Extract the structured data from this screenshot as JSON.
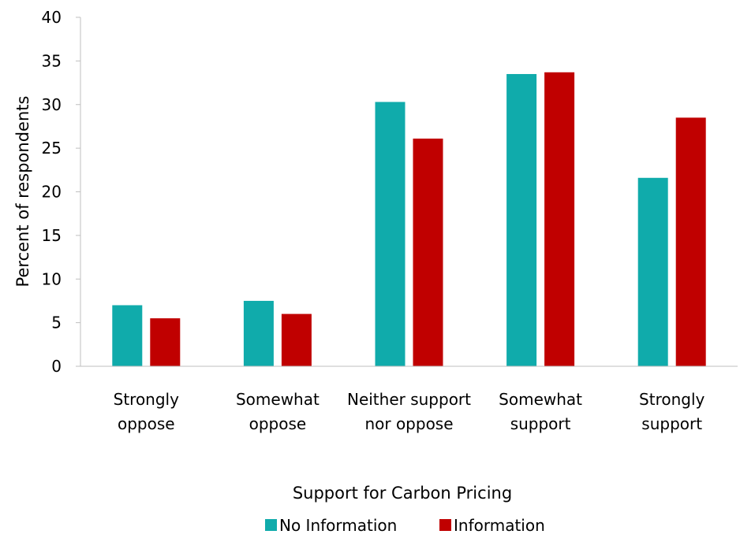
{
  "chart_data": {
    "type": "bar",
    "title": "",
    "xlabel": "Support for Carbon Pricing",
    "ylabel": "Percent of respondents",
    "ylim": [
      0,
      40
    ],
    "yticks": [
      0,
      5,
      10,
      15,
      20,
      25,
      30,
      35,
      40
    ],
    "ytick_labels": [
      "0",
      "5",
      "10",
      "15",
      "20",
      "25",
      "30",
      "35",
      "40"
    ],
    "grid": false,
    "legend_position": "bottom",
    "categories": [
      [
        "Strongly",
        "oppose"
      ],
      [
        "Somewhat",
        "oppose"
      ],
      [
        "Neither support",
        "nor oppose"
      ],
      [
        "Somewhat",
        "support"
      ],
      [
        "Strongly",
        "support"
      ]
    ],
    "series": [
      {
        "name": "No Information",
        "color": "#10ABAB",
        "values": [
          7.0,
          7.5,
          30.3,
          33.5,
          21.6
        ]
      },
      {
        "name": "Information",
        "color": "#C00000",
        "values": [
          5.5,
          6.0,
          26.1,
          33.7,
          28.5
        ]
      }
    ]
  }
}
